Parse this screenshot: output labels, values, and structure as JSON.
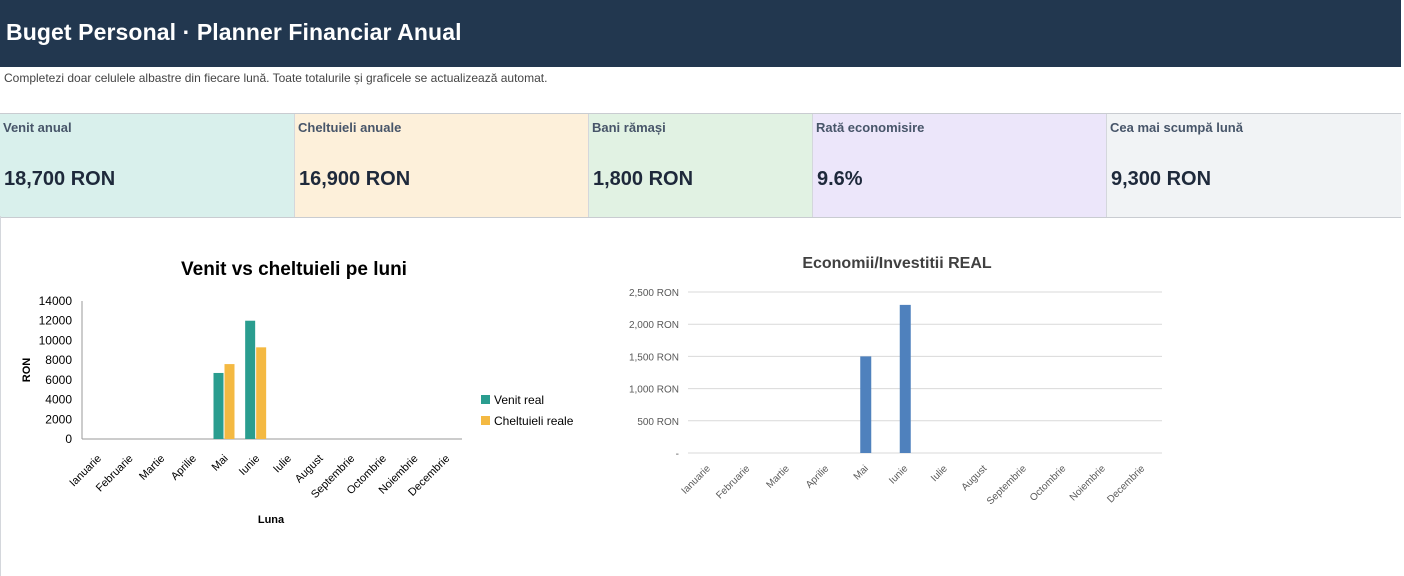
{
  "header": {
    "title": "Buget Personal · Planner Financiar Anual"
  },
  "subtitle": "Completezi doar celulele albastre din fiecare lună. Toate totalurile și graficele se actualizează automat.",
  "kpis": [
    {
      "label": "Venit anual",
      "value": "18,700 RON",
      "bg": "#d9f0ec"
    },
    {
      "label": "Cheltuieli anuale",
      "value": "16,900 RON",
      "bg": "#fdf0da"
    },
    {
      "label": "Bani rămași",
      "value": "1,800 RON",
      "bg": "#e1f2e3"
    },
    {
      "label": "Rată economisire",
      "value": "9.6%",
      "bg": "#ece6fa"
    },
    {
      "label": "Cea mai scumpă lună",
      "value": "9,300 RON",
      "bg": "#f1f3f5"
    }
  ],
  "chart_data": [
    {
      "type": "bar",
      "title": "Venit vs cheltuieli pe luni",
      "xlabel": "Luna",
      "ylabel": "RON",
      "ylim": [
        0,
        14000
      ],
      "yticks": [
        "0",
        "2000",
        "4000",
        "6000",
        "8000",
        "10000",
        "12000",
        "14000"
      ],
      "categories": [
        "Ianuarie",
        "Februarie",
        "Martie",
        "Aprilie",
        "Mai",
        "Iunie",
        "Iulie",
        "August",
        "Septembrie",
        "Octombrie",
        "Noiembrie",
        "Decembrie"
      ],
      "series": [
        {
          "name": "Venit real",
          "color": "#2a9d8f",
          "values": [
            0,
            0,
            0,
            0,
            6700,
            12000,
            0,
            0,
            0,
            0,
            0,
            0
          ]
        },
        {
          "name": "Cheltuieli reale",
          "color": "#f4b942",
          "values": [
            0,
            0,
            0,
            0,
            7600,
            9300,
            0,
            0,
            0,
            0,
            0,
            0
          ]
        }
      ],
      "legend": "right",
      "grid": false
    },
    {
      "type": "bar",
      "title": "Economii/Investitii REAL",
      "ylim": [
        0,
        2500
      ],
      "yticks": [
        "-",
        "500 RON",
        "1,000 RON",
        "1,500 RON",
        "2,000 RON",
        "2,500 RON"
      ],
      "categories": [
        "Ianuarie",
        "Februarie",
        "Martie",
        "Aprilie",
        "Mai",
        "Iunie",
        "Iulie",
        "August",
        "Septembrie",
        "Octombrie",
        "Noiembrie",
        "Decembrie"
      ],
      "series": [
        {
          "color": "#4f81bd",
          "values": [
            0,
            0,
            0,
            0,
            1500,
            2300,
            0,
            0,
            0,
            0,
            0,
            0
          ]
        }
      ],
      "grid": true
    }
  ]
}
